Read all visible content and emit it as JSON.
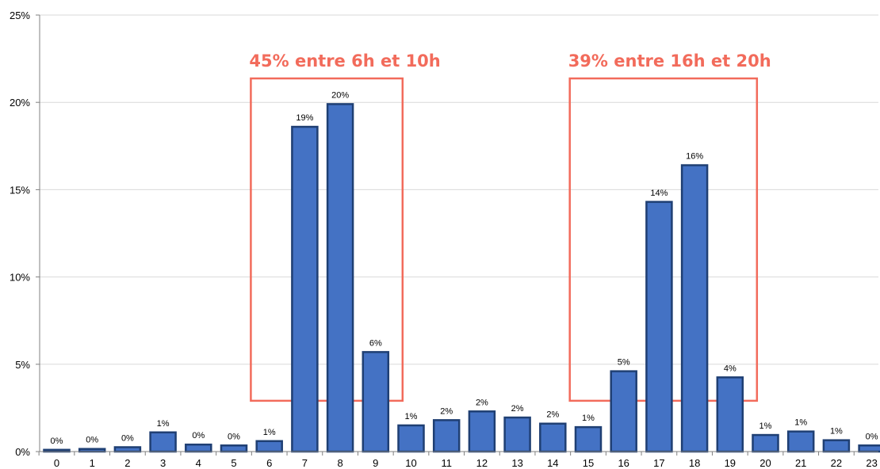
{
  "colors": {
    "bar_fill": "#4472c4",
    "bar_stroke": "#1f3f73",
    "grid": "#d9d9d9",
    "axis": "#808080",
    "annotation": "#f26b5b"
  },
  "chart_data": {
    "type": "bar",
    "title": "",
    "xlabel": "",
    "ylabel": "",
    "categories": [
      "0",
      "1",
      "2",
      "3",
      "4",
      "5",
      "6",
      "7",
      "8",
      "9",
      "10",
      "11",
      "12",
      "13",
      "14",
      "15",
      "16",
      "17",
      "18",
      "19",
      "20",
      "21",
      "22",
      "23"
    ],
    "values": [
      0.1,
      0.15,
      0.25,
      1.1,
      0.4,
      0.35,
      0.6,
      18.6,
      19.9,
      5.7,
      1.5,
      1.8,
      2.3,
      1.95,
      1.6,
      1.4,
      4.6,
      14.3,
      16.4,
      4.25,
      0.95,
      1.15,
      0.65,
      0.35
    ],
    "data_labels": [
      "0%",
      "0%",
      "0%",
      "1%",
      "0%",
      "0%",
      "1%",
      "19%",
      "20%",
      "6%",
      "1%",
      "2%",
      "2%",
      "2%",
      "2%",
      "1%",
      "5%",
      "14%",
      "16%",
      "4%",
      "1%",
      "1%",
      "1%",
      "0%"
    ],
    "y_ticks": [
      0,
      5,
      10,
      15,
      20,
      25
    ],
    "y_tick_labels": [
      "0%",
      "5%",
      "10%",
      "15%",
      "20%",
      "25%"
    ],
    "ylim": [
      0,
      25
    ],
    "grid": true,
    "legend": "none",
    "annotations": [
      {
        "text": "45% entre 6h et 10h",
        "from_category": "7",
        "to_category": "9",
        "y_bottom": 3
      },
      {
        "text": "39% entre 16h et 20h",
        "from_category": "16",
        "to_category": "19",
        "y_bottom": 3
      }
    ]
  }
}
